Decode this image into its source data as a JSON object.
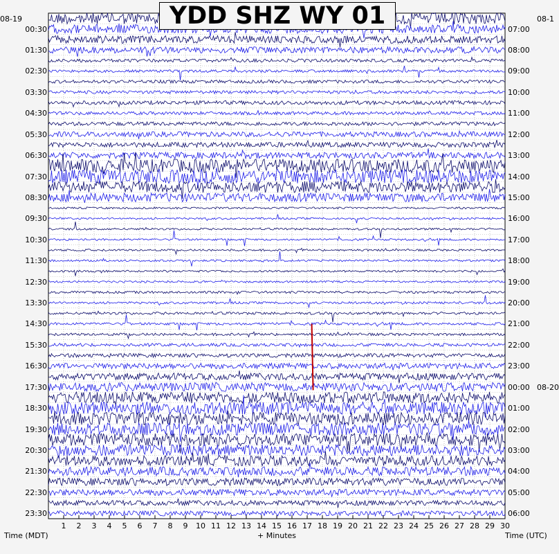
{
  "chart_data": {
    "type": "helicorder",
    "title": "YDD SHZ WY 01",
    "left_date": "08-19",
    "right_date_start": "08-1",
    "right_date_change": "08-20",
    "left_axis_label": "Time (MDT)",
    "right_axis_label": "Time (UTC)",
    "x_label": "+ Minutes",
    "x_range_minutes": [
      0,
      30
    ],
    "x_ticks": [
      "1",
      "2",
      "3",
      "4",
      "5",
      "6",
      "7",
      "8",
      "9",
      "10",
      "11",
      "12",
      "13",
      "14",
      "15",
      "16",
      "17",
      "18",
      "19",
      "20",
      "21",
      "22",
      "23",
      "24",
      "25",
      "26",
      "27",
      "28",
      "29",
      "30"
    ],
    "left_ticks": [
      "00:30",
      "01:30",
      "02:30",
      "03:30",
      "04:30",
      "05:30",
      "06:30",
      "07:30",
      "08:30",
      "09:30",
      "10:30",
      "11:30",
      "12:30",
      "13:30",
      "14:30",
      "15:30",
      "16:30",
      "17:30",
      "18:30",
      "19:30",
      "20:30",
      "21:30",
      "22:30",
      "23:30"
    ],
    "right_ticks": [
      "07:00",
      "08:00",
      "09:00",
      "10:00",
      "11:00",
      "12:00",
      "13:00",
      "14:00",
      "15:00",
      "16:00",
      "17:00",
      "18:00",
      "19:00",
      "20:00",
      "21:00",
      "22:00",
      "23:00",
      "00:00",
      "01:00",
      "02:00",
      "03:00",
      "04:00",
      "05:00",
      "06:00"
    ],
    "trace_colors": [
      "#0a0a6a",
      "#1e1ee8"
    ],
    "event_color": "#c00000",
    "grid": "dotted",
    "line_count": 48,
    "line_minutes": 30,
    "lines": [
      {
        "index": 0,
        "activity": 0.8
      },
      {
        "index": 1,
        "activity": 0.6
      },
      {
        "index": 2,
        "activity": 0.5
      },
      {
        "index": 3,
        "activity": 0.4
      },
      {
        "index": 4,
        "activity": 0.15
      },
      {
        "index": 5,
        "activity": 0.1
      },
      {
        "index": 6,
        "activity": 0.15
      },
      {
        "index": 7,
        "activity": 0.15
      },
      {
        "index": 8,
        "activity": 0.2
      },
      {
        "index": 9,
        "activity": 0.15
      },
      {
        "index": 10,
        "activity": 0.2
      },
      {
        "index": 11,
        "activity": 0.3
      },
      {
        "index": 12,
        "activity": 0.3
      },
      {
        "index": 13,
        "activity": 0.4
      },
      {
        "index": 14,
        "activity": 1.0
      },
      {
        "index": 15,
        "activity": 1.0
      },
      {
        "index": 16,
        "activity": 0.8
      },
      {
        "index": 17,
        "activity": 0.6
      },
      {
        "index": 18,
        "activity": 0.05
      },
      {
        "index": 19,
        "activity": 0.05
      },
      {
        "index": 20,
        "activity": 0.05
      },
      {
        "index": 21,
        "activity": 0.05
      },
      {
        "index": 22,
        "activity": 0.05
      },
      {
        "index": 23,
        "activity": 0.05
      },
      {
        "index": 24,
        "activity": 0.05
      },
      {
        "index": 25,
        "activity": 0.05
      },
      {
        "index": 26,
        "activity": 0.08
      },
      {
        "index": 27,
        "activity": 0.08
      },
      {
        "index": 28,
        "activity": 0.1
      },
      {
        "index": 29,
        "activity": 0.1
      },
      {
        "index": 30,
        "activity": 0.1
      },
      {
        "index": 31,
        "activity": 0.15
      },
      {
        "index": 32,
        "activity": 0.2
      },
      {
        "index": 33,
        "activity": 0.35
      },
      {
        "index": 34,
        "activity": 0.45
      },
      {
        "index": 35,
        "activity": 0.6
      },
      {
        "index": 36,
        "activity": 0.8
      },
      {
        "index": 37,
        "activity": 0.9
      },
      {
        "index": 38,
        "activity": 0.9
      },
      {
        "index": 39,
        "activity": 0.9
      },
      {
        "index": 40,
        "activity": 0.9
      },
      {
        "index": 41,
        "activity": 0.8
      },
      {
        "index": 42,
        "activity": 0.7
      },
      {
        "index": 43,
        "activity": 0.6
      },
      {
        "index": 44,
        "activity": 0.5
      },
      {
        "index": 45,
        "activity": 0.4
      },
      {
        "index": 46,
        "activity": 0.3
      },
      {
        "index": 47,
        "activity": 0.3
      }
    ]
  }
}
